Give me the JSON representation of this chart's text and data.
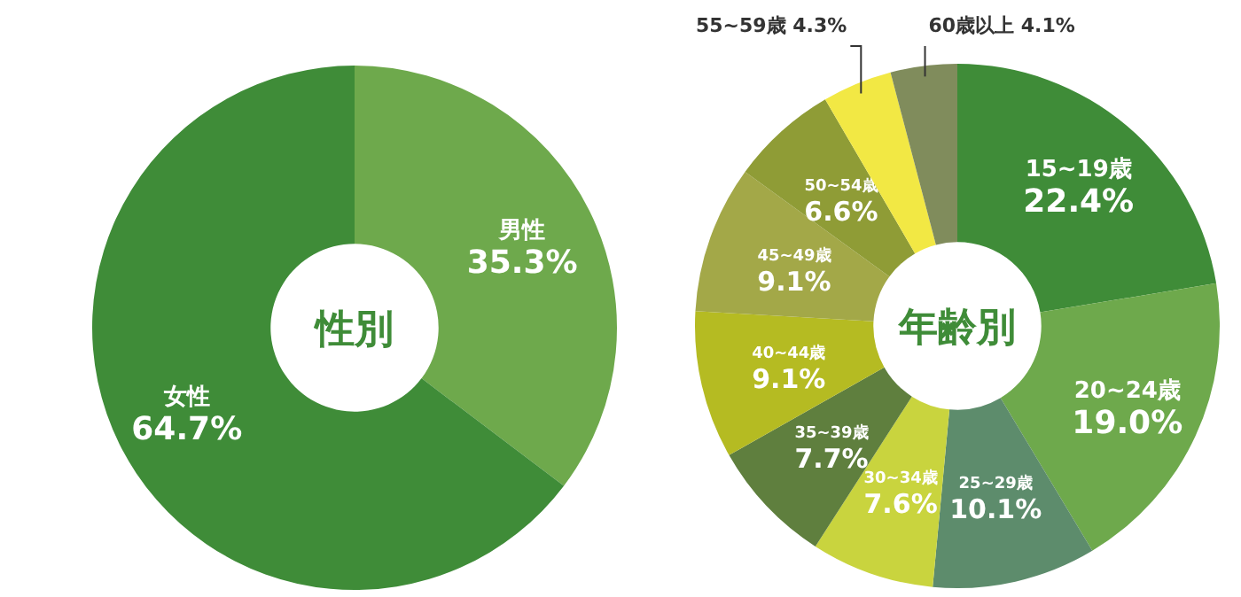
{
  "chart_data": [
    {
      "type": "donut",
      "title": "性別",
      "categories": [
        "男性",
        "女性"
      ],
      "values": [
        35.3,
        64.7
      ],
      "colors": [
        "#6ea94c",
        "#3f8c38"
      ],
      "value_labels": [
        "35.3%",
        "64.7%"
      ]
    },
    {
      "type": "donut",
      "title": "年齢別",
      "categories": [
        "15~19歳",
        "20~24歳",
        "25~29歳",
        "30~34歳",
        "35~39歳",
        "40~44歳",
        "45~49歳",
        "50~54歳",
        "55~59歳",
        "60歳以上"
      ],
      "values": [
        22.4,
        19.0,
        10.1,
        7.6,
        7.7,
        9.1,
        9.1,
        6.6,
        4.3,
        4.1
      ],
      "colors": [
        "#3f8c38",
        "#6ea94c",
        "#5d8c6c",
        "#c9d43e",
        "#5f7f3e",
        "#b5bb22",
        "#a3a848",
        "#8f9c36",
        "#f2e844",
        "#808c5c"
      ],
      "value_labels": [
        "22.4%",
        "19.0%",
        "10.1%",
        "7.6%",
        "7.7%",
        "9.1%",
        "9.1%",
        "6.6%",
        "4.3%",
        "4.1%"
      ]
    }
  ]
}
